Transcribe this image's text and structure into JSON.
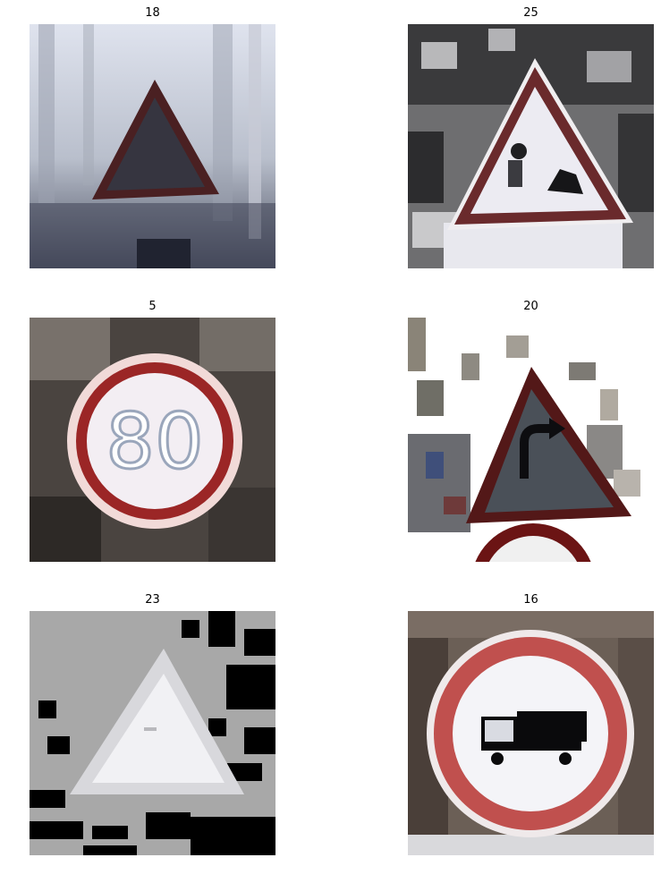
{
  "panels": [
    {
      "label": "18",
      "sign": "warning-triangle-general-caution"
    },
    {
      "label": "25",
      "sign": "warning-triangle-road-work"
    },
    {
      "label": "5",
      "sign": "speed-limit-80",
      "sign_text": "80"
    },
    {
      "label": "20",
      "sign": "warning-triangle-curve-right"
    },
    {
      "label": "23",
      "sign": "warning-triangle-slippery-road"
    },
    {
      "label": "16",
      "sign": "no-trucks-circle"
    }
  ],
  "colors": {
    "sign_red": "#8a1a1a",
    "sign_border_light": "#c84a4a",
    "sign_white": "#f2f2f4",
    "dark_triangle": "#2a2a30"
  }
}
